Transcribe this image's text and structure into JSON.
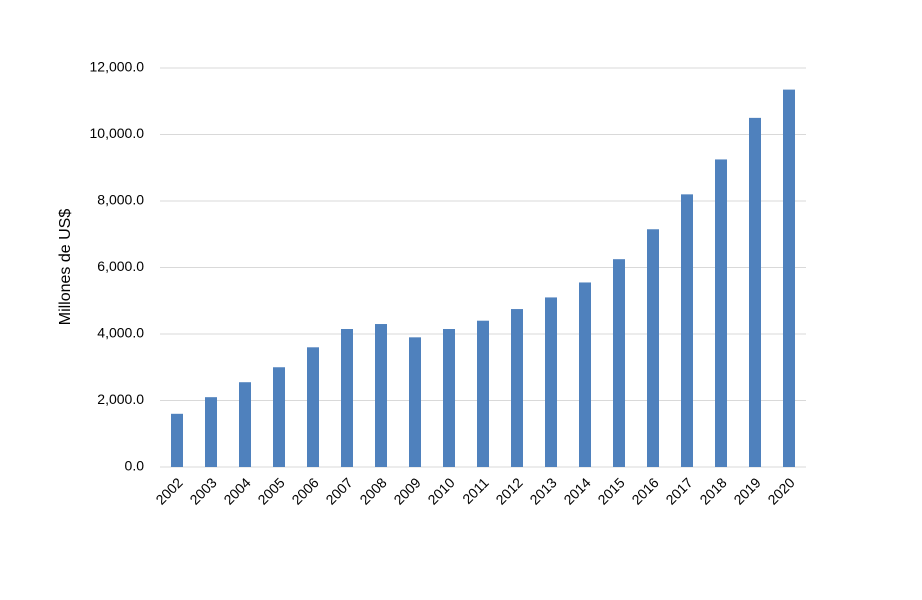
{
  "chart_data": {
    "type": "bar",
    "ylabel": "Millones de US$",
    "categories": [
      "2002",
      "2003",
      "2004",
      "2005",
      "2006",
      "2007",
      "2008",
      "2009",
      "2010",
      "2011",
      "2012",
      "2013",
      "2014",
      "2015",
      "2016",
      "2017",
      "2018",
      "2019",
      "2020"
    ],
    "values": [
      1600,
      2100,
      2550,
      3000,
      3600,
      4150,
      4300,
      3900,
      4150,
      4400,
      4750,
      5100,
      5550,
      6250,
      7150,
      8200,
      9250,
      10500,
      11350
    ],
    "color": "#4f81bd",
    "ylim": [
      0,
      12000
    ],
    "yticks": [
      {
        "value": 0,
        "label": "0.0"
      },
      {
        "value": 2000,
        "label": "2,000.0"
      },
      {
        "value": 4000,
        "label": "4,000.0"
      },
      {
        "value": 6000,
        "label": "6,000.0"
      },
      {
        "value": 8000,
        "label": "8,000.0"
      },
      {
        "value": 10000,
        "label": "10,000.0"
      },
      {
        "value": 12000,
        "label": "12,000.0"
      }
    ],
    "grid": true
  }
}
